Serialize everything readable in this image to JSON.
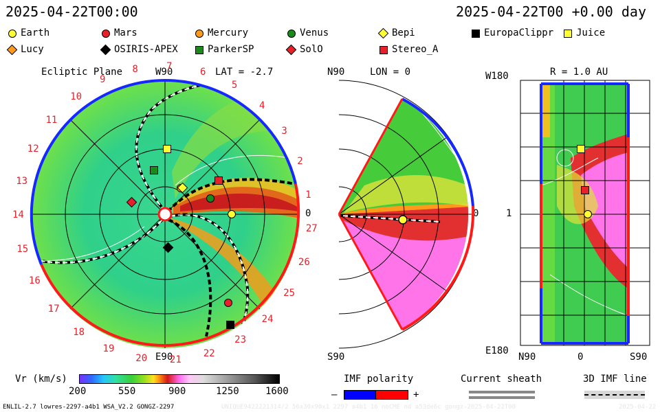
{
  "header": {
    "left_timestamp": "2025-04-22T00:00",
    "right_timestamp": "2025-04-22T00 +0.00 day"
  },
  "legend": [
    {
      "name": "Earth",
      "shape": "circle",
      "color": "#ffff33"
    },
    {
      "name": "Mars",
      "shape": "circle",
      "color": "#e8202a"
    },
    {
      "name": "Mercury",
      "shape": "circle",
      "color": "#ff9a1a"
    },
    {
      "name": "Venus",
      "shape": "circle",
      "color": "#1a8a1a"
    },
    {
      "name": "Bepi",
      "shape": "diamond",
      "color": "#ffff33"
    },
    {
      "name": "EuropaClippr",
      "shape": "square",
      "color": "#000000"
    },
    {
      "name": "Juice",
      "shape": "square",
      "color": "#ffff33"
    },
    {
      "name": "Lucy",
      "shape": "diamond",
      "color": "#ff9a1a"
    },
    {
      "name": "OSIRIS-APEX",
      "shape": "diamond",
      "color": "#000000"
    },
    {
      "name": "ParkerSP",
      "shape": "square",
      "color": "#1a8a1a"
    },
    {
      "name": "SolO",
      "shape": "diamond",
      "color": "#e8202a"
    },
    {
      "name": "Stereo_A",
      "shape": "square",
      "color": "#e8202a"
    }
  ],
  "ecliptic": {
    "title": "Ecliptic Plane",
    "top_label": "W90",
    "bottom_label": "E90",
    "right_label": "0",
    "lat_label": "LAT = -2.7",
    "carrington": [
      "1",
      "2",
      "3",
      "4",
      "5",
      "6",
      "7",
      "8",
      "9",
      "10",
      "11",
      "12",
      "13",
      "14",
      "15",
      "16",
      "17",
      "18",
      "19",
      "20",
      "21",
      "22",
      "23",
      "24",
      "25",
      "26",
      "27"
    ]
  },
  "meridional": {
    "top_label": "N90",
    "bottom_label": "S90",
    "lon_label": "LON = 0",
    "right_label": "0"
  },
  "radial": {
    "title": "R = 1.0 AU",
    "top_left": "W180",
    "mid_left": "1",
    "bottom_left": "E180",
    "x_left": "N90",
    "x_mid": "0",
    "x_right": "S90"
  },
  "colorbar": {
    "label": "Vr (km/s)",
    "ticks": [
      "200",
      "550",
      "900",
      "1250",
      "1600"
    ]
  },
  "imf": {
    "title": "IMF polarity",
    "minus": "–",
    "plus": "+",
    "colors": [
      "#0000ff",
      "#ff0000"
    ]
  },
  "sheath": {
    "title": "Current sheath"
  },
  "imf3d": {
    "title": "3D IMF line"
  },
  "footer": {
    "model": "ENLIL-2.7 lowres-2297-a4b1 WSA_V2.2 GONGZ-2297",
    "run": "UNIQUE9422221314/2 56x30x90x1 2297 a4b1 16 noCME nd a53de6c gongz-2025-04-22T00",
    "date": "2025-04-22"
  }
}
